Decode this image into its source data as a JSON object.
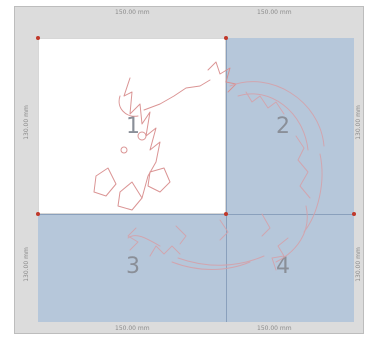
{
  "rulers": {
    "top_left": "150.00 mm",
    "top_right": "150.00 mm",
    "bottom_left": "150.00 mm",
    "bottom_right": "150.00 mm",
    "left_top": "130.00 mm",
    "left_bottom": "130.00 mm",
    "right_top": "130.00 mm",
    "right_bottom": "130.00 mm"
  },
  "hoop": {
    "sections": [
      "1",
      "2",
      "3",
      "4"
    ],
    "active_section": "1"
  },
  "colors": {
    "design_stroke": "#d98f8f",
    "marker": "#c0392b",
    "inactive_area": "#b6c7da"
  }
}
